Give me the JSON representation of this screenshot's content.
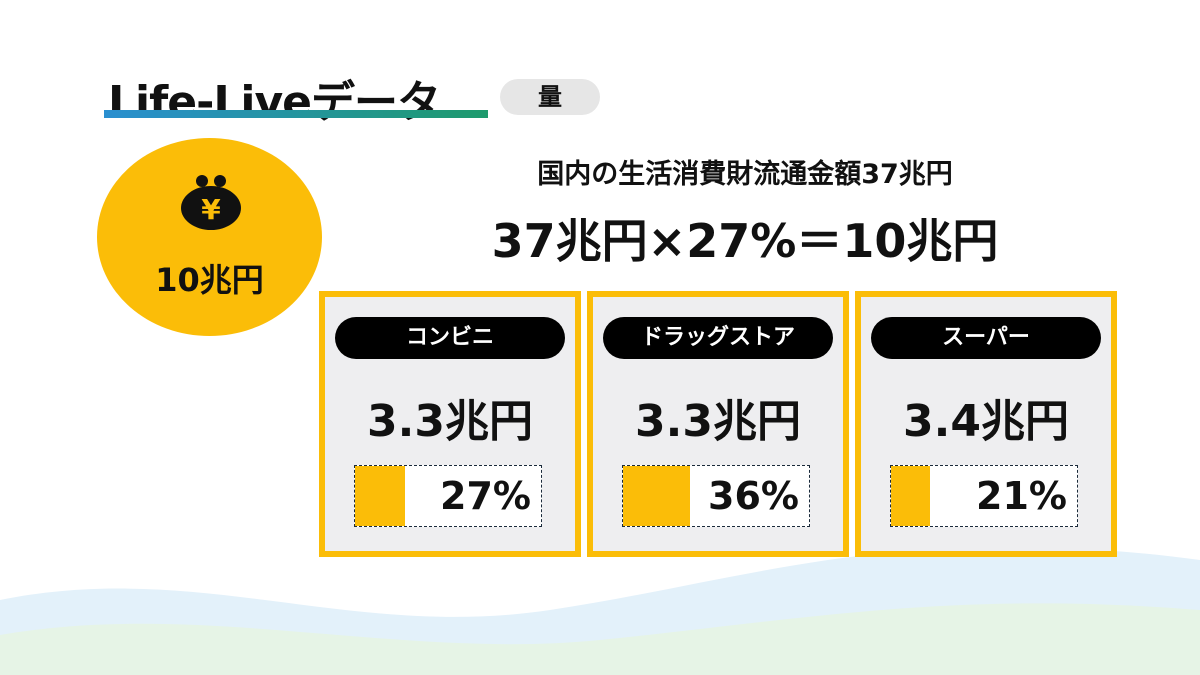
{
  "header": {
    "title": "Life-Liveデータ",
    "tag": "量"
  },
  "total": {
    "icon": "yen-purse-icon",
    "value": "10兆円",
    "accent": "#fbbd08"
  },
  "subtitle": "国内の生活消費財流通金額37兆円",
  "equation": "37兆円×27%＝10兆円",
  "cards": [
    {
      "label": "コンビニ",
      "amount": "3.3兆円",
      "percent_label": "27%",
      "percent": 27
    },
    {
      "label": "ドラッグストア",
      "amount": "3.3兆円",
      "percent_label": "36%",
      "percent": 36
    },
    {
      "label": "スーパー",
      "amount": "3.4兆円",
      "percent_label": "21%",
      "percent": 21
    }
  ]
}
